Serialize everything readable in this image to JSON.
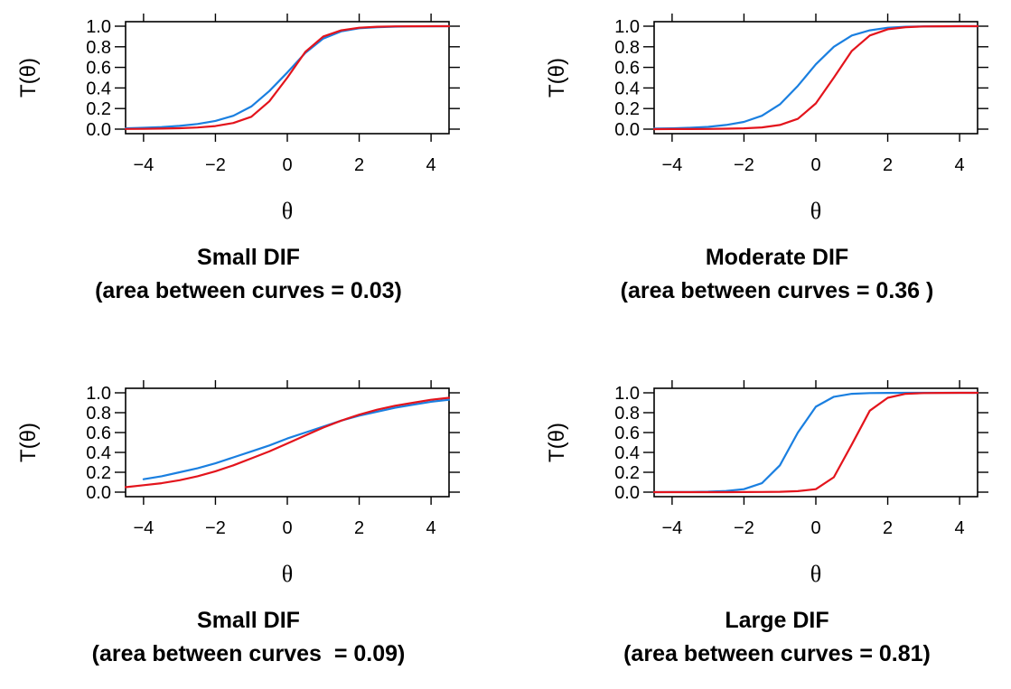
{
  "colors": {
    "series_blue": "#1a7fe0",
    "series_red": "#e3141c",
    "axis": "#000000"
  },
  "chart_data": [
    {
      "type": "line",
      "title": "Small DIF",
      "subtitle": "(area between curves = 0.03)",
      "xlabel": "θ",
      "ylabel": "T(θ)",
      "xlim": [
        -4.5,
        4.5
      ],
      "ylim": [
        0,
        1
      ],
      "x_ticks": [
        "−4",
        "−2",
        "0",
        "2",
        "4"
      ],
      "y_ticks": [
        "0.0",
        "0.2",
        "0.4",
        "0.6",
        "0.8",
        "1.0"
      ],
      "grid": false,
      "legend": "none",
      "series": [
        {
          "color": "#1a7fe0",
          "x": [
            -4.5,
            -4,
            -3.5,
            -3,
            -2.5,
            -2,
            -1.5,
            -1,
            -0.5,
            0,
            0.5,
            1,
            1.5,
            2,
            2.5,
            3,
            3.5,
            4,
            4.5
          ],
          "y": [
            0.008,
            0.013,
            0.02,
            0.032,
            0.05,
            0.08,
            0.13,
            0.22,
            0.37,
            0.55,
            0.74,
            0.88,
            0.95,
            0.98,
            0.99,
            0.996,
            0.998,
            0.999,
            1.0
          ]
        },
        {
          "color": "#e3141c",
          "x": [
            -4.5,
            -4,
            -3.5,
            -3,
            -2.5,
            -2,
            -1.5,
            -1,
            -0.5,
            0,
            0.5,
            1,
            1.5,
            2,
            2.5,
            3,
            3.5,
            4,
            4.5
          ],
          "y": [
            0.002,
            0.003,
            0.005,
            0.009,
            0.016,
            0.03,
            0.06,
            0.12,
            0.27,
            0.5,
            0.75,
            0.9,
            0.96,
            0.985,
            0.995,
            0.998,
            0.999,
            1.0,
            1.0
          ]
        }
      ]
    },
    {
      "type": "line",
      "title": "Moderate DIF",
      "subtitle": "(area between curves = 0.36 )",
      "xlabel": "θ",
      "ylabel": "T(θ)",
      "xlim": [
        -4.5,
        4.5
      ],
      "ylim": [
        0,
        1
      ],
      "x_ticks": [
        "−4",
        "−2",
        "0",
        "2",
        "4"
      ],
      "y_ticks": [
        "0.0",
        "0.2",
        "0.4",
        "0.6",
        "0.8",
        "1.0"
      ],
      "grid": false,
      "legend": "none",
      "series": [
        {
          "color": "#1a7fe0",
          "x": [
            -4.5,
            -4,
            -3.5,
            -3,
            -2.5,
            -2,
            -1.5,
            -1,
            -0.5,
            0,
            0.5,
            1,
            1.5,
            2,
            2.5,
            3,
            3.5,
            4,
            4.5
          ],
          "y": [
            0.005,
            0.008,
            0.013,
            0.022,
            0.04,
            0.07,
            0.13,
            0.24,
            0.42,
            0.63,
            0.8,
            0.91,
            0.96,
            0.985,
            0.995,
            0.998,
            0.999,
            1.0,
            1.0
          ]
        },
        {
          "color": "#e3141c",
          "x": [
            -4.5,
            -4,
            -3.5,
            -3,
            -2.5,
            -2,
            -1.5,
            -1,
            -0.5,
            0,
            0.5,
            1,
            1.5,
            2,
            2.5,
            3,
            3.5,
            4,
            4.5
          ],
          "y": [
            0.0,
            0.001,
            0.001,
            0.002,
            0.004,
            0.008,
            0.017,
            0.04,
            0.1,
            0.25,
            0.5,
            0.76,
            0.91,
            0.97,
            0.99,
            0.997,
            0.999,
            1.0,
            1.0
          ]
        }
      ]
    },
    {
      "type": "line",
      "title": "Small DIF",
      "subtitle": "(area between curves  = 0.09)",
      "xlabel": "θ",
      "ylabel": "T(θ)",
      "xlim": [
        -4.5,
        4.5
      ],
      "ylim": [
        0,
        1
      ],
      "x_ticks": [
        "−4",
        "−2",
        "0",
        "2",
        "4"
      ],
      "y_ticks": [
        "0.0",
        "0.2",
        "0.4",
        "0.6",
        "0.8",
        "1.0"
      ],
      "grid": false,
      "legend": "none",
      "series": [
        {
          "color": "#1a7fe0",
          "x": [
            -4,
            -3.5,
            -3,
            -2.5,
            -2,
            -1.5,
            -1,
            -0.5,
            0,
            0.5,
            1,
            1.5,
            2,
            2.5,
            3,
            3.5,
            4,
            4.5
          ],
          "y": [
            0.13,
            0.16,
            0.2,
            0.24,
            0.29,
            0.35,
            0.41,
            0.47,
            0.54,
            0.6,
            0.66,
            0.72,
            0.77,
            0.81,
            0.85,
            0.88,
            0.91,
            0.93
          ]
        },
        {
          "color": "#e3141c",
          "x": [
            -4.5,
            -4,
            -3.5,
            -3,
            -2.5,
            -2,
            -1.5,
            -1,
            -0.5,
            0,
            0.5,
            1,
            1.5,
            2,
            2.5,
            3,
            3.5,
            4,
            4.5
          ],
          "y": [
            0.05,
            0.07,
            0.09,
            0.12,
            0.16,
            0.21,
            0.27,
            0.34,
            0.41,
            0.49,
            0.57,
            0.65,
            0.72,
            0.78,
            0.83,
            0.87,
            0.9,
            0.93,
            0.95
          ]
        }
      ]
    },
    {
      "type": "line",
      "title": "Large DIF",
      "subtitle": "(area between curves = 0.81)",
      "xlabel": "θ",
      "ylabel": "T(θ)",
      "xlim": [
        -4.5,
        4.5
      ],
      "ylim": [
        0,
        1
      ],
      "x_ticks": [
        "−4",
        "−2",
        "0",
        "2",
        "4"
      ],
      "y_ticks": [
        "0.0",
        "0.2",
        "0.4",
        "0.6",
        "0.8",
        "1.0"
      ],
      "grid": false,
      "legend": "none",
      "series": [
        {
          "color": "#1a7fe0",
          "x": [
            -4.5,
            -4,
            -3.5,
            -3,
            -2.5,
            -2,
            -1.5,
            -1,
            -0.5,
            0,
            0.5,
            1,
            1.5,
            2,
            2.5,
            3,
            3.5,
            4,
            4.5
          ],
          "y": [
            0.0,
            0.001,
            0.002,
            0.005,
            0.012,
            0.03,
            0.09,
            0.27,
            0.6,
            0.86,
            0.96,
            0.99,
            0.997,
            0.999,
            1.0,
            1.0,
            1.0,
            1.0,
            1.0
          ]
        },
        {
          "color": "#e3141c",
          "x": [
            -4.5,
            -4,
            -3.5,
            -3,
            -2.5,
            -2,
            -1.5,
            -1,
            -0.5,
            0,
            0.5,
            1,
            1.5,
            2,
            2.5,
            3,
            3.5,
            4,
            4.5
          ],
          "y": [
            0.0,
            0.0,
            0.0,
            0.0,
            0.0,
            0.001,
            0.002,
            0.004,
            0.01,
            0.03,
            0.15,
            0.48,
            0.82,
            0.95,
            0.99,
            0.997,
            0.999,
            1.0,
            1.0
          ]
        }
      ]
    }
  ]
}
